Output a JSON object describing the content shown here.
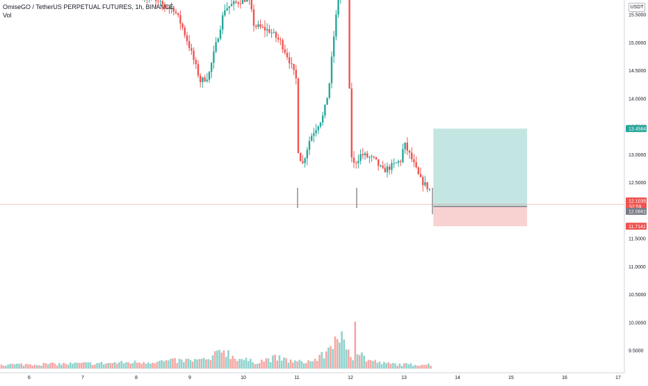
{
  "header": {
    "symbol_line": "OmiseGO / TetherUS PERPETUAL FUTURES, 1h, BINANCE",
    "vol_label": "Vol",
    "currency": "USDT"
  },
  "colors": {
    "up": "#26a69a",
    "down": "#ef5350",
    "vol_up": "#8fd3cc",
    "vol_down": "#f5a7a5",
    "target_zone": "#c4e6e3",
    "stop_zone": "#f7d2d1",
    "entry_line": "#787b86"
  },
  "chart_data": {
    "type": "candlestick",
    "title": "OmiseGO / TetherUS PERPETUAL FUTURES, 1h, BINANCE",
    "ylim": [
      9.2,
      15.85
    ],
    "price_ticks": [
      "15.5000",
      "15.0000",
      "14.5000",
      "14.0000",
      "13.5000",
      "13.0000",
      "12.5000",
      "12.0000",
      "11.5000",
      "11.0000",
      "10.5000",
      "10.0000",
      "9.5000"
    ],
    "x_ticks": [
      "6",
      "7",
      "8",
      "9",
      "10",
      "11",
      "12",
      "13",
      "14",
      "15",
      "16",
      "17"
    ],
    "price_labels": [
      {
        "label": "target",
        "text": "13.4584",
        "color": "#26a69a"
      },
      {
        "label": "last",
        "text": "12.1035",
        "sub": "52:59",
        "color": "#ef5350"
      },
      {
        "label": "entry",
        "text": "12.0661",
        "color": "#787b86"
      },
      {
        "label": "stop",
        "text": "11.7141",
        "color": "#ef5350"
      }
    ],
    "position": {
      "target": 13.4584,
      "entry": 12.0661,
      "stop": 11.7141,
      "start_day": 13.55,
      "end_day": 15.3
    },
    "last_price": 12.1035,
    "anchors": [
      [
        7.6,
        16.5
      ],
      [
        8.0,
        15.9
      ],
      [
        8.4,
        15.7
      ],
      [
        8.7,
        15.6
      ],
      [
        8.85,
        15.3
      ],
      [
        9.0,
        14.9
      ],
      [
        9.2,
        14.3
      ],
      [
        9.35,
        14.4
      ],
      [
        9.5,
        15.0
      ],
      [
        9.65,
        15.6
      ],
      [
        9.85,
        15.7
      ],
      [
        10.1,
        15.8
      ],
      [
        10.2,
        15.3
      ],
      [
        10.5,
        15.2
      ],
      [
        10.7,
        15.0
      ],
      [
        10.85,
        14.7
      ],
      [
        11.0,
        14.3
      ],
      [
        11.02,
        13.1
      ],
      [
        11.1,
        12.8
      ],
      [
        11.25,
        13.3
      ],
      [
        11.5,
        13.7
      ],
      [
        11.6,
        14.2
      ],
      [
        11.7,
        15.2
      ],
      [
        11.8,
        16.0
      ],
      [
        11.95,
        15.9
      ],
      [
        12.0,
        13.1
      ],
      [
        12.05,
        12.8
      ],
      [
        12.2,
        13.0
      ],
      [
        12.45,
        12.9
      ],
      [
        12.6,
        12.7
      ],
      [
        12.8,
        12.8
      ],
      [
        12.95,
        12.9
      ],
      [
        13.0,
        13.2
      ],
      [
        13.15,
        12.9
      ],
      [
        13.3,
        12.55
      ],
      [
        13.5,
        12.35
      ],
      [
        13.55,
        12.1
      ]
    ],
    "volume_profile": [
      [
        5.7,
        14
      ],
      [
        7.4,
        18
      ],
      [
        8.7,
        26
      ],
      [
        9.4,
        30
      ],
      [
        9.6,
        70
      ],
      [
        9.8,
        40
      ],
      [
        10.2,
        22
      ],
      [
        10.6,
        36
      ],
      [
        11.0,
        22
      ],
      [
        11.3,
        26
      ],
      [
        11.5,
        45
      ],
      [
        11.65,
        85
      ],
      [
        11.75,
        130
      ],
      [
        11.85,
        95
      ],
      [
        11.95,
        70
      ],
      [
        12.05,
        40
      ],
      [
        12.1,
        45
      ],
      [
        12.15,
        60
      ],
      [
        12.3,
        30
      ],
      [
        12.6,
        18
      ],
      [
        13.0,
        14
      ],
      [
        13.55,
        14
      ]
    ],
    "volume_spikes": [
      [
        12.1,
        270
      ],
      [
        11.8,
        150
      ],
      [
        11.75,
        170
      ]
    ]
  }
}
